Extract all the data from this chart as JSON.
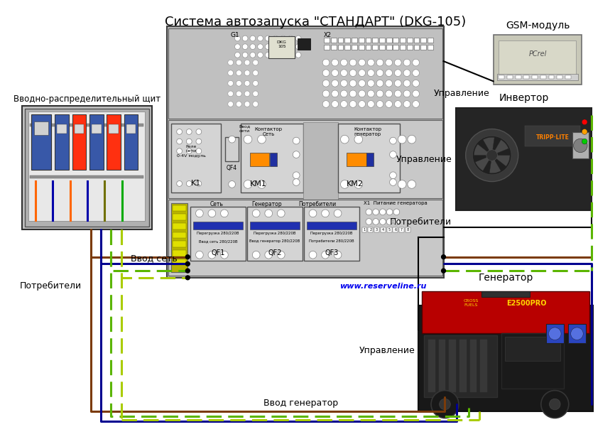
{
  "title": "Система автозапуска \"СТАНДАРТ\" (DKG-105)",
  "title_fontsize": 13,
  "bg_color": "#ffffff",
  "fig_width": 8.66,
  "fig_height": 6.25,
  "labels": {
    "vvodniy": "Вводно-распределительный щит",
    "gsm": "GSM-модуль",
    "invertor": "Инвертор",
    "generator": "Генератор",
    "upravlenie1": "Управление",
    "upravlenie2": "Управление",
    "upravlenie3": "Управление",
    "potrebiteli1": "Потребители",
    "potrebiteli2": "Потребители",
    "vvod_set": "Ввод сеть",
    "vvod_gen": "Ввод генератор",
    "website": "www.reserveline.ru"
  },
  "colors": {
    "main_box": "#b8b8b8",
    "main_box_border": "#404040",
    "brown_wire": "#7B3B0A",
    "blue_wire": "#000090",
    "green_dashed": "#5BB500",
    "yellow_green": "#AACC00",
    "black_wire": "#000000",
    "website_color": "#0000EE"
  }
}
